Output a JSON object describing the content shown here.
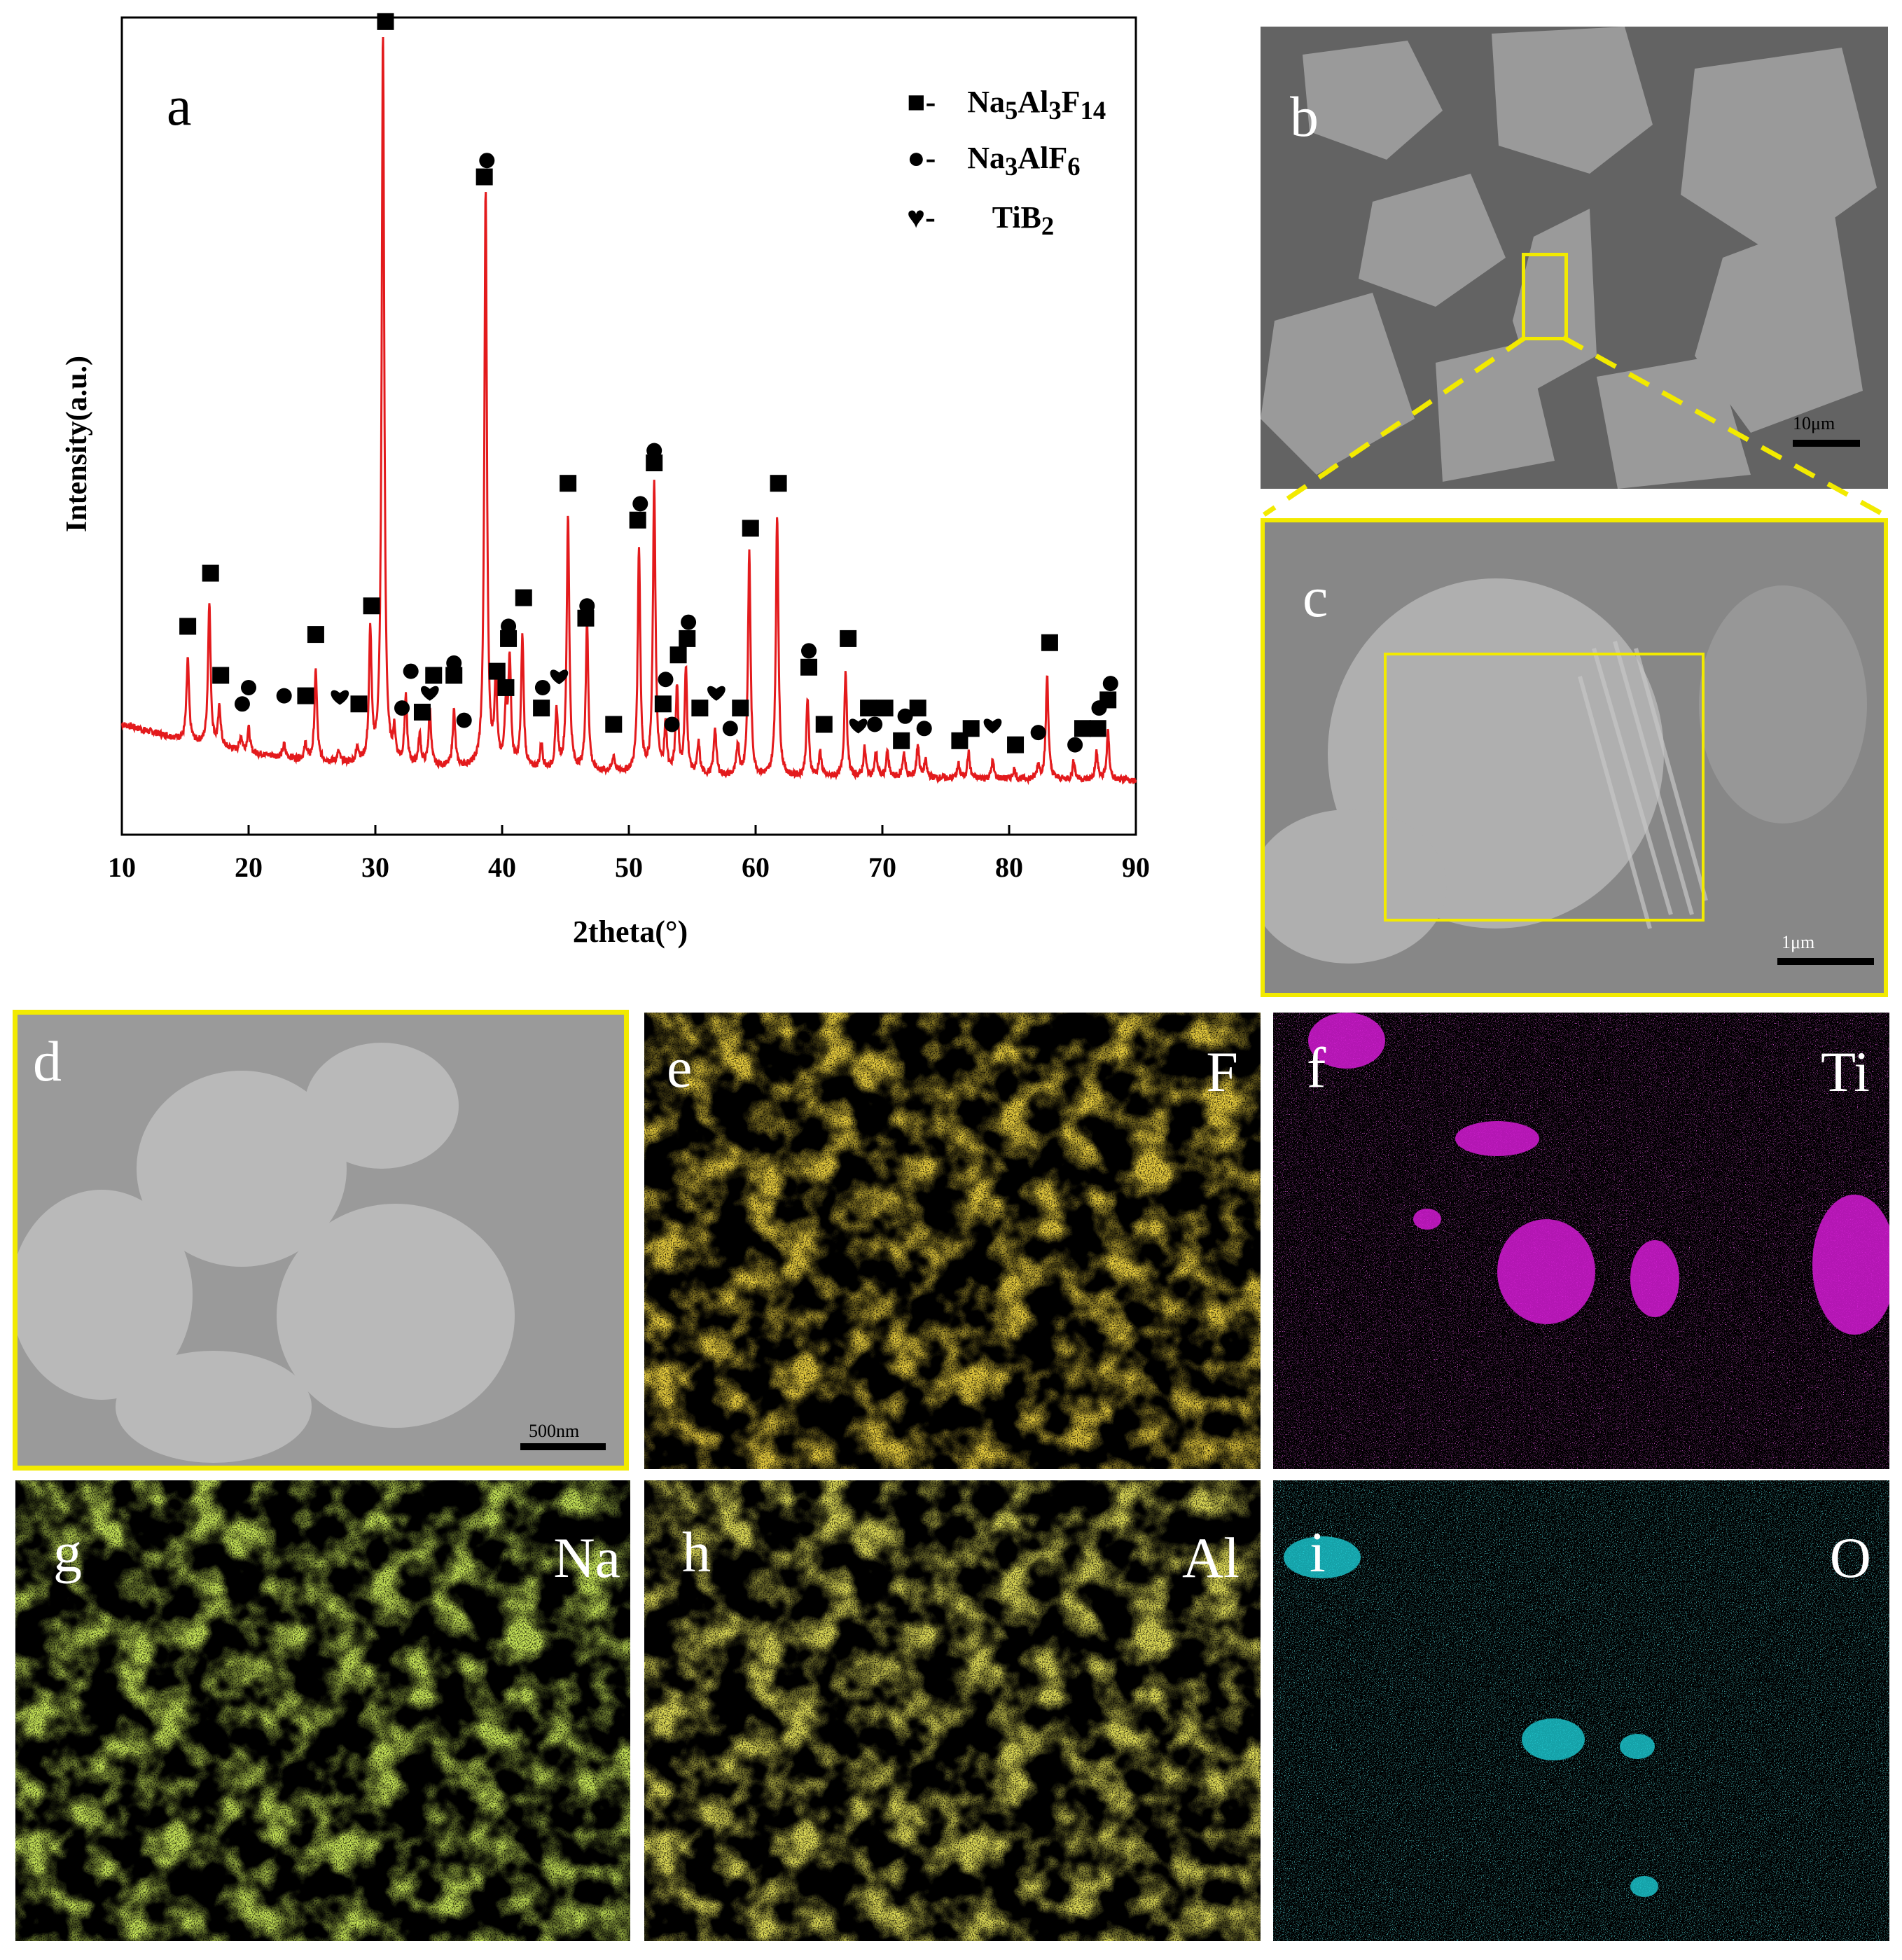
{
  "panels": {
    "a": "a",
    "b": "b",
    "c": "c",
    "d": "d",
    "e": "e",
    "f": "f",
    "g": "g",
    "h": "h",
    "i": "i"
  },
  "scale_bars": {
    "b": "10μm",
    "c": "1μm",
    "d": "500nm"
  },
  "elements": {
    "e": "F",
    "f": "Ti",
    "g": "Na",
    "h": "Al",
    "i": "O"
  },
  "colors": {
    "curve": "#e31a1c",
    "highlight": "#f2ea00",
    "F": "#d9a40c",
    "Ti": "#d21ad2",
    "Na": "#9bd21a",
    "Al": "#c9c11a",
    "O": "#1ac9d2"
  },
  "legend": [
    {
      "symbol": "square",
      "sym_char": "■-",
      "formula": "Na5Al3F14",
      "base": "Na",
      "parts": [
        [
          "Na",
          ""
        ],
        [
          "5",
          "sub"
        ],
        [
          "Al",
          ""
        ],
        [
          "3",
          "sub"
        ],
        [
          "F",
          ""
        ],
        [
          "14",
          "sub"
        ]
      ]
    },
    {
      "symbol": "circle",
      "sym_char": "●-",
      "formula": "Na3AlF6",
      "parts": [
        [
          "Na",
          ""
        ],
        [
          "3",
          "sub"
        ],
        [
          "AlF",
          ""
        ],
        [
          "6",
          "sub"
        ]
      ]
    },
    {
      "symbol": "heart",
      "sym_char": "♥-",
      "formula": "TiB2",
      "parts": [
        [
          "TiB",
          ""
        ],
        [
          "2",
          "sub"
        ]
      ]
    }
  ],
  "chart_data": {
    "type": "line",
    "title": "",
    "xlabel": "2theta(°)",
    "ylabel": "Intensity(a.u.)",
    "xlim": [
      10,
      90
    ],
    "xticks": [
      10,
      20,
      30,
      40,
      50,
      60,
      70,
      80,
      90
    ],
    "ylim": [
      0,
      1
    ],
    "grid": false,
    "legend_position": "top-right",
    "baseline": {
      "x": [
        10,
        15,
        20,
        25,
        30,
        40,
        50,
        60,
        70,
        80,
        90
      ],
      "y": [
        0.135,
        0.115,
        0.1,
        0.09,
        0.085,
        0.08,
        0.075,
        0.07,
        0.07,
        0.068,
        0.066
      ]
    },
    "peaks": [
      {
        "x": 15.2,
        "y": 0.215
      },
      {
        "x": 16.9,
        "y": 0.285
      },
      {
        "x": 17.7,
        "y": 0.155
      },
      {
        "x": 19.4,
        "y": 0.12
      },
      {
        "x": 20.0,
        "y": 0.13
      },
      {
        "x": 22.8,
        "y": 0.11
      },
      {
        "x": 24.5,
        "y": 0.11
      },
      {
        "x": 25.3,
        "y": 0.2
      },
      {
        "x": 27.1,
        "y": 0.1
      },
      {
        "x": 28.6,
        "y": 0.105
      },
      {
        "x": 29.6,
        "y": 0.245
      },
      {
        "x": 30.6,
        "y": 0.98
      },
      {
        "x": 31.5,
        "y": 0.12
      },
      {
        "x": 32.4,
        "y": 0.165
      },
      {
        "x": 33.5,
        "y": 0.12
      },
      {
        "x": 34.3,
        "y": 0.15
      },
      {
        "x": 36.2,
        "y": 0.15
      },
      {
        "x": 38.7,
        "y": 0.79
      },
      {
        "x": 39.5,
        "y": 0.185
      },
      {
        "x": 40.3,
        "y": 0.15
      },
      {
        "x": 40.6,
        "y": 0.21
      },
      {
        "x": 41.6,
        "y": 0.24
      },
      {
        "x": 43.1,
        "y": 0.11
      },
      {
        "x": 44.3,
        "y": 0.15
      },
      {
        "x": 45.2,
        "y": 0.39
      },
      {
        "x": 46.7,
        "y": 0.26
      },
      {
        "x": 48.8,
        "y": 0.095
      },
      {
        "x": 50.8,
        "y": 0.35
      },
      {
        "x": 52.0,
        "y": 0.43
      },
      {
        "x": 52.9,
        "y": 0.13
      },
      {
        "x": 53.8,
        "y": 0.18
      },
      {
        "x": 54.5,
        "y": 0.2
      },
      {
        "x": 55.5,
        "y": 0.11
      },
      {
        "x": 56.8,
        "y": 0.13
      },
      {
        "x": 58.6,
        "y": 0.11
      },
      {
        "x": 59.5,
        "y": 0.345
      },
      {
        "x": 61.7,
        "y": 0.39
      },
      {
        "x": 64.1,
        "y": 0.165
      },
      {
        "x": 65.1,
        "y": 0.1
      },
      {
        "x": 67.1,
        "y": 0.2
      },
      {
        "x": 68.6,
        "y": 0.105
      },
      {
        "x": 69.5,
        "y": 0.1
      },
      {
        "x": 70.4,
        "y": 0.1
      },
      {
        "x": 71.7,
        "y": 0.1
      },
      {
        "x": 72.8,
        "y": 0.11
      },
      {
        "x": 73.4,
        "y": 0.09
      },
      {
        "x": 76.0,
        "y": 0.085
      },
      {
        "x": 76.8,
        "y": 0.1
      },
      {
        "x": 78.7,
        "y": 0.09
      },
      {
        "x": 80.4,
        "y": 0.08
      },
      {
        "x": 82.3,
        "y": 0.085
      },
      {
        "x": 83.0,
        "y": 0.195
      },
      {
        "x": 85.1,
        "y": 0.09
      },
      {
        "x": 86.9,
        "y": 0.1
      },
      {
        "x": 87.8,
        "y": 0.125
      }
    ],
    "markers": [
      {
        "x": 15.2,
        "y": 0.255,
        "s": "square"
      },
      {
        "x": 17.0,
        "y": 0.32,
        "s": "square"
      },
      {
        "x": 17.8,
        "y": 0.195,
        "s": "square"
      },
      {
        "x": 19.5,
        "y": 0.16,
        "s": "circle"
      },
      {
        "x": 20.0,
        "y": 0.18,
        "s": "circle"
      },
      {
        "x": 22.8,
        "y": 0.17,
        "s": "circle"
      },
      {
        "x": 24.5,
        "y": 0.17,
        "s": "square"
      },
      {
        "x": 25.3,
        "y": 0.245,
        "s": "square"
      },
      {
        "x": 27.2,
        "y": 0.17,
        "s": "heart"
      },
      {
        "x": 28.7,
        "y": 0.16,
        "s": "square"
      },
      {
        "x": 29.7,
        "y": 0.28,
        "s": "square"
      },
      {
        "x": 30.8,
        "y": 0.995,
        "s": "square"
      },
      {
        "x": 32.1,
        "y": 0.155,
        "s": "circle"
      },
      {
        "x": 32.8,
        "y": 0.2,
        "s": "circle"
      },
      {
        "x": 33.7,
        "y": 0.15,
        "s": "square"
      },
      {
        "x": 34.3,
        "y": 0.175,
        "s": "heart"
      },
      {
        "x": 34.6,
        "y": 0.195,
        "s": "square"
      },
      {
        "x": 36.2,
        "y": 0.195,
        "s": "square"
      },
      {
        "x": 36.2,
        "y": 0.21,
        "s": "circle"
      },
      {
        "x": 37.0,
        "y": 0.14,
        "s": "circle"
      },
      {
        "x": 38.6,
        "y": 0.805,
        "s": "square"
      },
      {
        "x": 38.8,
        "y": 0.825,
        "s": "circle"
      },
      {
        "x": 39.6,
        "y": 0.2,
        "s": "square"
      },
      {
        "x": 40.3,
        "y": 0.18,
        "s": "square"
      },
      {
        "x": 40.5,
        "y": 0.24,
        "s": "square"
      },
      {
        "x": 40.5,
        "y": 0.255,
        "s": "circle"
      },
      {
        "x": 41.7,
        "y": 0.29,
        "s": "square"
      },
      {
        "x": 43.1,
        "y": 0.155,
        "s": "square"
      },
      {
        "x": 43.2,
        "y": 0.18,
        "s": "circle"
      },
      {
        "x": 44.5,
        "y": 0.195,
        "s": "heart"
      },
      {
        "x": 45.2,
        "y": 0.43,
        "s": "square"
      },
      {
        "x": 46.6,
        "y": 0.265,
        "s": "square"
      },
      {
        "x": 46.7,
        "y": 0.28,
        "s": "circle"
      },
      {
        "x": 48.8,
        "y": 0.135,
        "s": "square"
      },
      {
        "x": 50.7,
        "y": 0.385,
        "s": "square"
      },
      {
        "x": 50.9,
        "y": 0.405,
        "s": "circle"
      },
      {
        "x": 52.0,
        "y": 0.455,
        "s": "square"
      },
      {
        "x": 52.0,
        "y": 0.47,
        "s": "circle"
      },
      {
        "x": 52.7,
        "y": 0.16,
        "s": "square"
      },
      {
        "x": 52.9,
        "y": 0.19,
        "s": "circle"
      },
      {
        "x": 53.4,
        "y": 0.135,
        "s": "circle"
      },
      {
        "x": 53.9,
        "y": 0.22,
        "s": "square"
      },
      {
        "x": 54.6,
        "y": 0.24,
        "s": "square"
      },
      {
        "x": 54.7,
        "y": 0.26,
        "s": "circle"
      },
      {
        "x": 55.6,
        "y": 0.155,
        "s": "square"
      },
      {
        "x": 56.9,
        "y": 0.175,
        "s": "heart"
      },
      {
        "x": 58.0,
        "y": 0.13,
        "s": "circle"
      },
      {
        "x": 58.8,
        "y": 0.155,
        "s": "square"
      },
      {
        "x": 59.6,
        "y": 0.375,
        "s": "square"
      },
      {
        "x": 61.8,
        "y": 0.43,
        "s": "square"
      },
      {
        "x": 64.2,
        "y": 0.205,
        "s": "square"
      },
      {
        "x": 64.2,
        "y": 0.225,
        "s": "circle"
      },
      {
        "x": 65.4,
        "y": 0.135,
        "s": "square"
      },
      {
        "x": 67.3,
        "y": 0.24,
        "s": "square"
      },
      {
        "x": 68.1,
        "y": 0.135,
        "s": "heart"
      },
      {
        "x": 68.9,
        "y": 0.155,
        "s": "square"
      },
      {
        "x": 69.4,
        "y": 0.135,
        "s": "circle"
      },
      {
        "x": 70.2,
        "y": 0.155,
        "s": "square"
      },
      {
        "x": 71.5,
        "y": 0.115,
        "s": "square"
      },
      {
        "x": 71.8,
        "y": 0.145,
        "s": "circle"
      },
      {
        "x": 72.8,
        "y": 0.155,
        "s": "square"
      },
      {
        "x": 73.3,
        "y": 0.13,
        "s": "circle"
      },
      {
        "x": 76.1,
        "y": 0.115,
        "s": "square"
      },
      {
        "x": 77.0,
        "y": 0.13,
        "s": "square"
      },
      {
        "x": 78.7,
        "y": 0.135,
        "s": "heart"
      },
      {
        "x": 80.5,
        "y": 0.11,
        "s": "square"
      },
      {
        "x": 82.3,
        "y": 0.125,
        "s": "circle"
      },
      {
        "x": 83.2,
        "y": 0.235,
        "s": "square"
      },
      {
        "x": 85.2,
        "y": 0.11,
        "s": "circle"
      },
      {
        "x": 85.8,
        "y": 0.13,
        "s": "square"
      },
      {
        "x": 87.0,
        "y": 0.13,
        "s": "square"
      },
      {
        "x": 87.1,
        "y": 0.155,
        "s": "circle"
      },
      {
        "x": 87.8,
        "y": 0.165,
        "s": "square"
      },
      {
        "x": 88.0,
        "y": 0.185,
        "s": "circle"
      }
    ]
  }
}
